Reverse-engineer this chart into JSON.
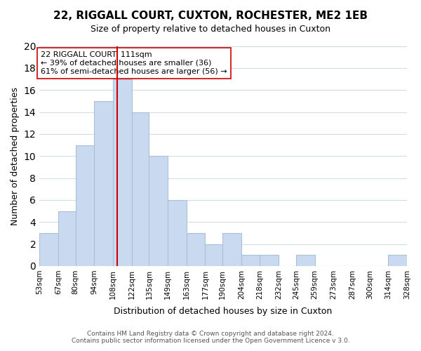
{
  "title": "22, RIGGALL COURT, CUXTON, ROCHESTER, ME2 1EB",
  "subtitle": "Size of property relative to detached houses in Cuxton",
  "xlabel": "Distribution of detached houses by size in Cuxton",
  "ylabel": "Number of detached properties",
  "bar_edges": [
    53,
    67,
    80,
    94,
    108,
    122,
    135,
    149,
    163,
    177,
    190,
    204,
    218,
    232,
    245,
    259,
    273,
    287,
    300,
    314,
    328
  ],
  "bar_heights": [
    3,
    5,
    11,
    15,
    17,
    14,
    10,
    6,
    3,
    2,
    3,
    1,
    1,
    0,
    1,
    0,
    0,
    0,
    0,
    1
  ],
  "bar_color": "#c9d9f0",
  "bar_edgecolor": "#aabfd8",
  "property_line_x": 111,
  "property_line_color": "#cc0000",
  "annotation_text": "22 RIGGALL COURT: 111sqm\n← 39% of detached houses are smaller (36)\n61% of semi-detached houses are larger (56) →",
  "annotation_box_edgecolor": "#cc0000",
  "annotation_box_facecolor": "#ffffff",
  "ylim": [
    0,
    20
  ],
  "yticks": [
    0,
    2,
    4,
    6,
    8,
    10,
    12,
    14,
    16,
    18,
    20
  ],
  "tick_labels": [
    "53sqm",
    "67sqm",
    "80sqm",
    "94sqm",
    "108sqm",
    "122sqm",
    "135sqm",
    "149sqm",
    "163sqm",
    "177sqm",
    "190sqm",
    "204sqm",
    "218sqm",
    "232sqm",
    "245sqm",
    "259sqm",
    "273sqm",
    "287sqm",
    "300sqm",
    "314sqm",
    "328sqm"
  ],
  "footer_line1": "Contains HM Land Registry data © Crown copyright and database right 2024.",
  "footer_line2": "Contains public sector information licensed under the Open Government Licence v 3.0.",
  "background_color": "#ffffff",
  "grid_color": "#d0dce8"
}
